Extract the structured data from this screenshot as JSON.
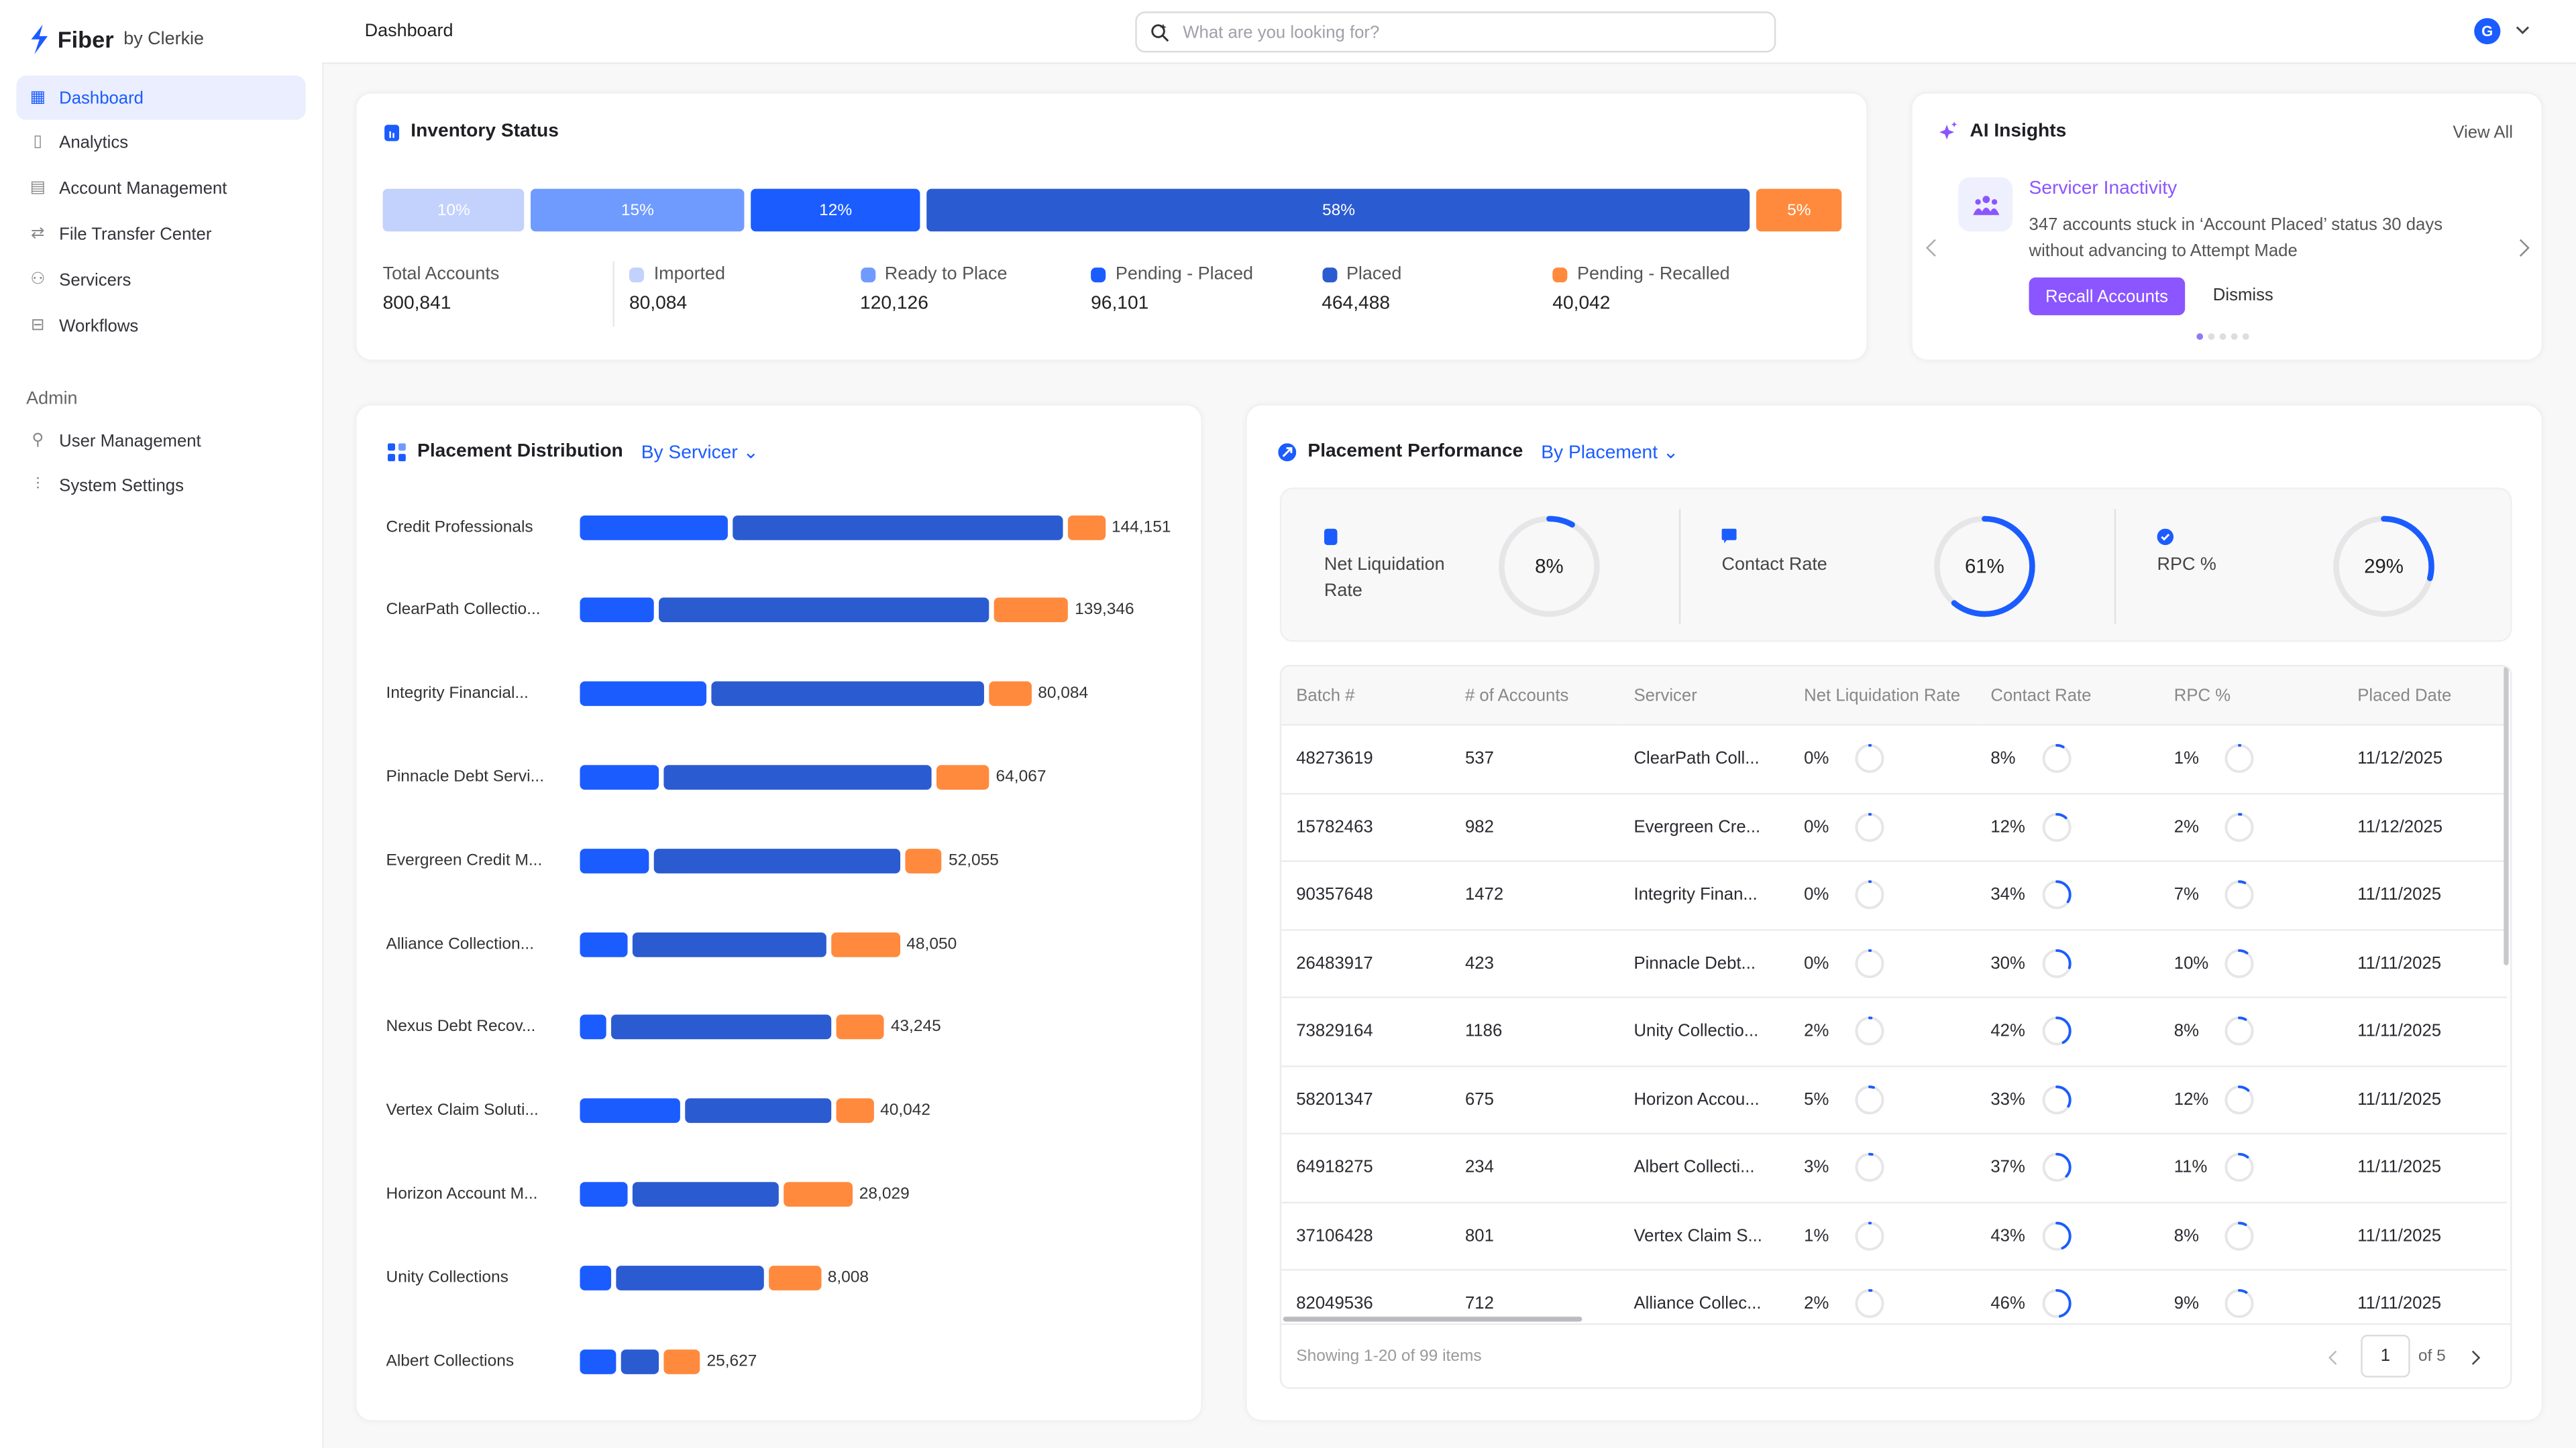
{
  "app": {
    "brand": "Fiber",
    "brand_suffix": "by Clerkie",
    "accent": "#1b5cff",
    "ai_accent": "#8b55ff"
  },
  "sidebar": {
    "items": [
      {
        "label": "Dashboard",
        "icon": "dashboard-icon",
        "active": true
      },
      {
        "label": "Analytics",
        "icon": "clipboard-chart-icon"
      },
      {
        "label": "Account Management",
        "icon": "grid-plus-icon"
      },
      {
        "label": "File Transfer Center",
        "icon": "transfer-arrows-icon"
      },
      {
        "label": "Servicers",
        "icon": "people-icon"
      },
      {
        "label": "Workflows",
        "icon": "workflow-icon"
      }
    ],
    "admin_label": "Admin",
    "admin_items": [
      {
        "label": "User Management",
        "icon": "user-gear-icon"
      },
      {
        "label": "System Settings",
        "icon": "sliders-icon"
      }
    ]
  },
  "header": {
    "breadcrumb": "Dashboard",
    "search_placeholder": "What are you looking for?",
    "search_value": "",
    "avatar_initial": "G"
  },
  "inventory": {
    "title": "Inventory Status",
    "segments": [
      {
        "label": "Imported",
        "pct": 10,
        "color": "#c3d1fd"
      },
      {
        "label": "Ready to Place",
        "pct": 15,
        "color": "#6f9bff"
      },
      {
        "label": "Pending - Placed",
        "pct": 12,
        "color": "#1b5cff"
      },
      {
        "label": "Placed",
        "pct": 58,
        "color": "#2b5bd0"
      },
      {
        "label": "Pending - Recalled",
        "pct": 5,
        "color": "#ff8a3d"
      }
    ],
    "total_label": "Total Accounts",
    "total_value": "800,841",
    "values": [
      "80,084",
      "120,126",
      "96,101",
      "464,488",
      "40,042"
    ]
  },
  "ai": {
    "title": "AI Insights",
    "view_all": "View All",
    "insight_title": "Servicer Inactivity",
    "insight_text": "347 accounts stuck in ‘Account Placed’ status 30 days without advancing to Attempt Made",
    "primary": "Recall Accounts",
    "secondary": "Dismiss",
    "pages": 5,
    "current_page": 1
  },
  "distribution": {
    "title": "Placement Distribution",
    "filter": "By Servicer",
    "colors": [
      "#1b5cff",
      "#2b5bd0",
      "#ff8a3d"
    ],
    "rows": [
      {
        "name": "Credit Professionals",
        "segments": [
          28,
          63,
          7
        ],
        "total": "144,151"
      },
      {
        "name": "ClearPath Collectio...",
        "segments": [
          14,
          63,
          14
        ],
        "total": "139,346"
      },
      {
        "name": "Integrity Financial...",
        "segments": [
          24,
          52,
          8
        ],
        "total": "80,084"
      },
      {
        "name": "Pinnacle Debt Servi...",
        "segments": [
          15,
          51,
          10
        ],
        "total": "64,067"
      },
      {
        "name": "Evergreen Credit M...",
        "segments": [
          13,
          47,
          7
        ],
        "total": "52,055"
      },
      {
        "name": "Alliance Collection...",
        "segments": [
          9,
          37,
          13
        ],
        "total": "48,050"
      },
      {
        "name": "Nexus Debt Recov...",
        "segments": [
          5,
          42,
          9
        ],
        "total": "43,245"
      },
      {
        "name": "Vertex Claim Soluti...",
        "segments": [
          19,
          28,
          7
        ],
        "total": "40,042"
      },
      {
        "name": "Horizon Account M...",
        "segments": [
          9,
          28,
          13
        ],
        "total": "28,029"
      },
      {
        "name": "Unity Collections",
        "segments": [
          6,
          28,
          10
        ],
        "total": "8,008"
      },
      {
        "name": "Albert Collections",
        "segments": [
          7,
          7,
          7
        ],
        "total": "25,627"
      }
    ]
  },
  "performance": {
    "title": "Placement Performance",
    "filter": "By Placement",
    "gauges": [
      {
        "label": "Net Liquidation Rate",
        "value": 8,
        "display": "8%",
        "icon": "clipboard-chart-icon"
      },
      {
        "label": "Contact Rate",
        "value": 61,
        "display": "61%",
        "icon": "chat-bubble-icon"
      },
      {
        "label": "RPC %",
        "value": 29,
        "display": "29%",
        "icon": "check-badge-icon"
      }
    ],
    "columns": [
      "Batch #",
      "# of Accounts",
      "Servicer",
      "Net Liquidation Rate",
      "Contact Rate",
      "RPC %",
      "Placed Date"
    ],
    "rows": [
      [
        "48273619",
        "537",
        "ClearPath Coll...",
        "0%",
        "8%",
        "1%",
        "11/12/2025"
      ],
      [
        "15782463",
        "982",
        "Evergreen Cre...",
        "0%",
        "12%",
        "2%",
        "11/12/2025"
      ],
      [
        "90357648",
        "1472",
        "Integrity Finan...",
        "0%",
        "34%",
        "7%",
        "11/11/2025"
      ],
      [
        "26483917",
        "423",
        "Pinnacle Debt...",
        "0%",
        "30%",
        "10%",
        "11/11/2025"
      ],
      [
        "73829164",
        "1186",
        "Unity Collectio...",
        "2%",
        "42%",
        "8%",
        "11/11/2025"
      ],
      [
        "58201347",
        "675",
        "Horizon Accou...",
        "5%",
        "33%",
        "12%",
        "11/11/2025"
      ],
      [
        "64918275",
        "234",
        "Albert Collecti...",
        "3%",
        "37%",
        "11%",
        "11/11/2025"
      ],
      [
        "37106428",
        "801",
        "Vertex Claim S...",
        "1%",
        "43%",
        "8%",
        "11/11/2025"
      ],
      [
        "82049536",
        "712",
        "Alliance Collec...",
        "2%",
        "46%",
        "9%",
        "11/11/2025"
      ]
    ],
    "footer": "Showing 1-20 of 99 items",
    "page": "1",
    "of_pages": "of 5"
  }
}
